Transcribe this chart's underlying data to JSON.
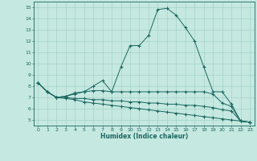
{
  "xlabel": "Humidex (Indice chaleur)",
  "xlim": [
    -0.5,
    23.5
  ],
  "ylim": [
    4.5,
    15.5
  ],
  "xticks": [
    0,
    1,
    2,
    3,
    4,
    5,
    6,
    7,
    8,
    9,
    10,
    11,
    12,
    13,
    14,
    15,
    16,
    17,
    18,
    19,
    20,
    21,
    22,
    23
  ],
  "yticks": [
    5,
    6,
    7,
    8,
    9,
    10,
    11,
    12,
    13,
    14,
    15
  ],
  "background_color": "#c5e8e0",
  "grid_color": "#9ecec5",
  "line_color": "#1a6860",
  "line1_x": [
    0,
    1,
    2,
    3,
    4,
    5,
    6,
    7,
    8,
    9,
    10,
    11,
    12,
    13,
    14,
    15,
    16,
    17,
    18,
    19,
    20,
    21,
    22,
    23
  ],
  "line1_y": [
    8.3,
    7.5,
    7.0,
    7.1,
    7.4,
    7.5,
    8.0,
    8.5,
    7.5,
    9.7,
    11.6,
    11.6,
    12.5,
    14.8,
    14.9,
    14.3,
    13.2,
    12.0,
    9.7,
    7.5,
    7.5,
    6.4,
    4.9,
    4.8
  ],
  "line2_x": [
    0,
    1,
    2,
    3,
    4,
    5,
    6,
    7,
    8,
    9,
    10,
    11,
    12,
    13,
    14,
    15,
    16,
    17,
    18,
    19,
    20,
    21,
    22,
    23
  ],
  "line2_y": [
    8.3,
    7.5,
    7.0,
    7.1,
    7.3,
    7.5,
    7.6,
    7.6,
    7.5,
    7.5,
    7.5,
    7.5,
    7.5,
    7.5,
    7.5,
    7.5,
    7.5,
    7.5,
    7.5,
    7.3,
    6.5,
    6.2,
    4.9,
    4.8
  ],
  "line3_x": [
    0,
    1,
    2,
    3,
    4,
    5,
    6,
    7,
    8,
    9,
    10,
    11,
    12,
    13,
    14,
    15,
    16,
    17,
    18,
    19,
    20,
    21,
    22,
    23
  ],
  "line3_y": [
    8.3,
    7.5,
    7.0,
    7.0,
    6.9,
    6.9,
    6.8,
    6.8,
    6.7,
    6.7,
    6.6,
    6.6,
    6.5,
    6.5,
    6.4,
    6.4,
    6.3,
    6.3,
    6.2,
    6.1,
    5.9,
    5.8,
    4.9,
    4.8
  ],
  "line4_x": [
    0,
    1,
    2,
    3,
    4,
    5,
    6,
    7,
    8,
    9,
    10,
    11,
    12,
    13,
    14,
    15,
    16,
    17,
    18,
    19,
    20,
    21,
    22,
    23
  ],
  "line4_y": [
    8.3,
    7.5,
    7.0,
    6.9,
    6.8,
    6.6,
    6.5,
    6.4,
    6.3,
    6.2,
    6.1,
    6.0,
    5.9,
    5.8,
    5.7,
    5.6,
    5.5,
    5.4,
    5.3,
    5.2,
    5.1,
    5.0,
    4.9,
    4.8
  ]
}
